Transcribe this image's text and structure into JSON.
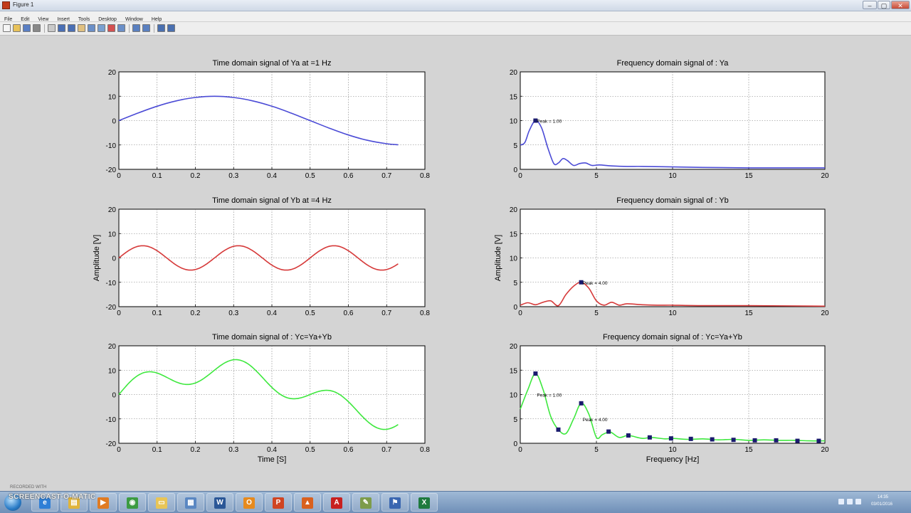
{
  "window": {
    "title": "Figure 1",
    "controls": [
      "‒",
      "▢",
      "✕"
    ]
  },
  "menubar": {
    "items": [
      "File",
      "Edit",
      "View",
      "Insert",
      "Tools",
      "Desktop",
      "Window",
      "Help"
    ]
  },
  "toolbar": {
    "icons": [
      "new-figure-icon",
      "open-file-icon",
      "save-icon",
      "print-icon",
      "edit-plot-icon",
      "zoom-in-icon",
      "zoom-out-icon",
      "pan-icon",
      "rotate-3d-icon",
      "data-cursor-icon",
      "brush-icon",
      "link-plot-icon",
      "insert-colorbar-icon",
      "insert-legend-icon",
      "hide-plot-tools-icon",
      "show-plot-tools-icon"
    ]
  },
  "taskbar": {
    "watermark": "SCREENCAST-O-MATIC",
    "watermark_sub": "RECORDED WITH",
    "clock_time": "14:35",
    "clock_date": "03/01/2016",
    "apps": [
      {
        "name": "ie-taskbar-icon",
        "glyph": "e",
        "color": "#2f7fd6"
      },
      {
        "name": "explorer-taskbar-icon",
        "glyph": "▤",
        "color": "#e0b43a"
      },
      {
        "name": "media-player-taskbar-icon",
        "glyph": "▶",
        "color": "#e07b22"
      },
      {
        "name": "chrome-taskbar-icon",
        "glyph": "◉",
        "color": "#3c9b42"
      },
      {
        "name": "folder-taskbar-icon",
        "glyph": "▭",
        "color": "#e8c557"
      },
      {
        "name": "network-taskbar-icon",
        "glyph": "▦",
        "color": "#5a87c2"
      },
      {
        "name": "word-taskbar-icon",
        "glyph": "W",
        "color": "#2b5797"
      },
      {
        "name": "outlook-taskbar-icon",
        "glyph": "O",
        "color": "#e68a1e"
      },
      {
        "name": "powerpoint-taskbar-icon",
        "glyph": "P",
        "color": "#d04523"
      },
      {
        "name": "matlab-taskbar-icon",
        "glyph": "▲",
        "color": "#d9611f"
      },
      {
        "name": "acrobat-taskbar-icon",
        "glyph": "A",
        "color": "#c8201f"
      },
      {
        "name": "notepad-taskbar-icon",
        "glyph": "✎",
        "color": "#7d9c4a"
      },
      {
        "name": "remote-taskbar-icon",
        "glyph": "⚑",
        "color": "#3a66b0"
      },
      {
        "name": "excel-taskbar-icon",
        "glyph": "X",
        "color": "#1f7a3e"
      }
    ]
  },
  "colors": {
    "ya": "#4b4bd6",
    "yb": "#d63a3a",
    "yc": "#3ee83e",
    "peak_marker": "#1a1a6e",
    "axes_bg": "#ffffff",
    "figure_bg": "#d4d4d4"
  },
  "chart_data": [
    {
      "type": "line",
      "id": "ya_time",
      "title": "Time domain signal of Ya at =1 Hz",
      "xlabel": "",
      "ylabel": "",
      "xlim": [
        0,
        0.8
      ],
      "ylim": [
        -20,
        20
      ],
      "xticks": [
        "0",
        "0.1",
        "0.2",
        "0.3",
        "0.4",
        "0.5",
        "0.6",
        "0.7",
        "0.8"
      ],
      "yticks": [
        "-20",
        "-10",
        "0",
        "10",
        "20"
      ],
      "grid": true,
      "series": [
        {
          "color_key": "ya",
          "x": [
            0,
            0.05,
            0.1,
            0.15,
            0.2,
            0.25,
            0.3,
            0.35,
            0.4,
            0.45,
            0.5,
            0.55,
            0.6,
            0.65,
            0.7,
            0.73
          ],
          "y": [
            0,
            3.1,
            5.9,
            8.1,
            9.5,
            10,
            9.5,
            8.1,
            5.9,
            3.1,
            0,
            -3.1,
            -5.9,
            -8.1,
            -9.5,
            -9.9
          ]
        }
      ]
    },
    {
      "type": "line",
      "id": "ya_freq",
      "title": "Frequency domain signal of : Ya",
      "xlabel": "",
      "ylabel": "",
      "xlim": [
        0,
        20
      ],
      "ylim": [
        0,
        20
      ],
      "xticks": [
        "0",
        "5",
        "10",
        "15",
        "20"
      ],
      "yticks": [
        "0",
        "5",
        "10",
        "15",
        "20"
      ],
      "grid": true,
      "series": [
        {
          "color_key": "ya",
          "x": [
            0,
            0.3,
            0.6,
            1,
            1.4,
            1.8,
            2.2,
            2.5,
            2.8,
            3.1,
            3.5,
            3.9,
            4.3,
            4.7,
            5.2,
            6,
            7,
            8,
            10,
            12,
            15,
            20
          ],
          "y": [
            5,
            5.5,
            8,
            10,
            8.5,
            4.5,
            1.2,
            1.3,
            2.2,
            1.8,
            0.8,
            1.2,
            1.3,
            0.8,
            0.9,
            0.7,
            0.6,
            0.6,
            0.5,
            0.4,
            0.3,
            0.3
          ]
        }
      ],
      "annotations": [
        {
          "x": 1,
          "y": 10,
          "text": "Peak = 1.00"
        }
      ]
    },
    {
      "type": "line",
      "id": "yb_time",
      "title": "Time domain signal of Yb at =4 Hz",
      "xlabel": "",
      "ylabel": "Amplitude [V]",
      "xlim": [
        0,
        0.8
      ],
      "ylim": [
        -20,
        20
      ],
      "xticks": [
        "0",
        "0.1",
        "0.2",
        "0.3",
        "0.4",
        "0.5",
        "0.6",
        "0.7",
        "0.8"
      ],
      "yticks": [
        "-20",
        "-10",
        "0",
        "10",
        "20"
      ],
      "grid": true,
      "series": [
        {
          "color_key": "yb",
          "func": "sin",
          "amp": 5,
          "freq": 4,
          "x_end": 0.73
        }
      ]
    },
    {
      "type": "line",
      "id": "yb_freq",
      "title": "Frequency domain signal of : Yb",
      "xlabel": "",
      "ylabel": "Amplitude [V]",
      "xlim": [
        0,
        20
      ],
      "ylim": [
        0,
        20
      ],
      "xticks": [
        "0",
        "5",
        "10",
        "15",
        "20"
      ],
      "yticks": [
        "0",
        "5",
        "10",
        "15",
        "20"
      ],
      "grid": true,
      "series": [
        {
          "color_key": "yb",
          "x": [
            0,
            0.5,
            1,
            1.5,
            2,
            2.5,
            3,
            3.5,
            4,
            4.5,
            5,
            5.5,
            6,
            6.5,
            7,
            8,
            9,
            10,
            12,
            15,
            20
          ],
          "y": [
            0.3,
            0.8,
            0.4,
            0.9,
            1.2,
            0.2,
            2.5,
            4.2,
            5,
            3.8,
            1.2,
            0.3,
            0.9,
            0.3,
            0.6,
            0.4,
            0.3,
            0.3,
            0.2,
            0.2,
            0.1
          ]
        }
      ],
      "annotations": [
        {
          "x": 4,
          "y": 5,
          "text": "Peak = 4.00"
        }
      ]
    },
    {
      "type": "line",
      "id": "yc_time",
      "title": "Time domain signal of : Yc=Ya+Yb",
      "xlabel": "Time [S]",
      "ylabel": "",
      "xlim": [
        0,
        0.8
      ],
      "ylim": [
        -20,
        20
      ],
      "xticks": [
        "0",
        "0.1",
        "0.2",
        "0.3",
        "0.4",
        "0.5",
        "0.6",
        "0.7",
        "0.8"
      ],
      "yticks": [
        "-20",
        "-10",
        "0",
        "10",
        "20"
      ],
      "grid": true,
      "series": [
        {
          "color_key": "yc",
          "func": "sum",
          "x_end": 0.73
        }
      ]
    },
    {
      "type": "line",
      "id": "yc_freq",
      "title": "Frequency domain signal of : Yc=Ya+Yb",
      "xlabel": "Frequency [Hz]",
      "ylabel": "",
      "xlim": [
        0,
        20
      ],
      "ylim": [
        0,
        20
      ],
      "xticks": [
        "0",
        "5",
        "10",
        "15",
        "20"
      ],
      "yticks": [
        "0",
        "5",
        "10",
        "15",
        "20"
      ],
      "grid": true,
      "series": [
        {
          "color_key": "yc",
          "x": [
            0,
            0.5,
            1,
            1.5,
            2,
            2.5,
            3,
            3.5,
            4,
            4.5,
            5,
            5.4,
            5.9,
            6.5,
            7.1,
            8,
            8.6,
            9.5,
            10,
            11,
            12,
            13,
            14,
            15,
            16,
            17,
            18,
            19,
            20
          ],
          "y": [
            7,
            11,
            14.3,
            11,
            5.5,
            2.8,
            2,
            5,
            8.2,
            6,
            1.2,
            1.8,
            2.3,
            1.2,
            1.6,
            1,
            1.2,
            0.9,
            1,
            0.8,
            0.9,
            0.7,
            0.8,
            0.6,
            0.7,
            0.6,
            0.6,
            0.5,
            0.5
          ]
        }
      ],
      "markers": [
        {
          "x": 1,
          "y": 14.3
        },
        {
          "x": 2.5,
          "y": 2.8
        },
        {
          "x": 4,
          "y": 8.2
        },
        {
          "x": 5.8,
          "y": 2.4
        },
        {
          "x": 7.1,
          "y": 1.6
        },
        {
          "x": 8.5,
          "y": 1.2
        },
        {
          "x": 9.9,
          "y": 1
        },
        {
          "x": 11.2,
          "y": 0.9
        },
        {
          "x": 12.6,
          "y": 0.8
        },
        {
          "x": 14,
          "y": 0.7
        },
        {
          "x": 15.4,
          "y": 0.6
        },
        {
          "x": 16.8,
          "y": 0.6
        },
        {
          "x": 18.2,
          "y": 0.5
        },
        {
          "x": 19.6,
          "y": 0.5
        }
      ],
      "annotations": [
        {
          "x": 1,
          "y": 10,
          "text": "Peak = 1.00"
        },
        {
          "x": 4,
          "y": 5,
          "text": "Peak = 4.00"
        }
      ]
    }
  ]
}
